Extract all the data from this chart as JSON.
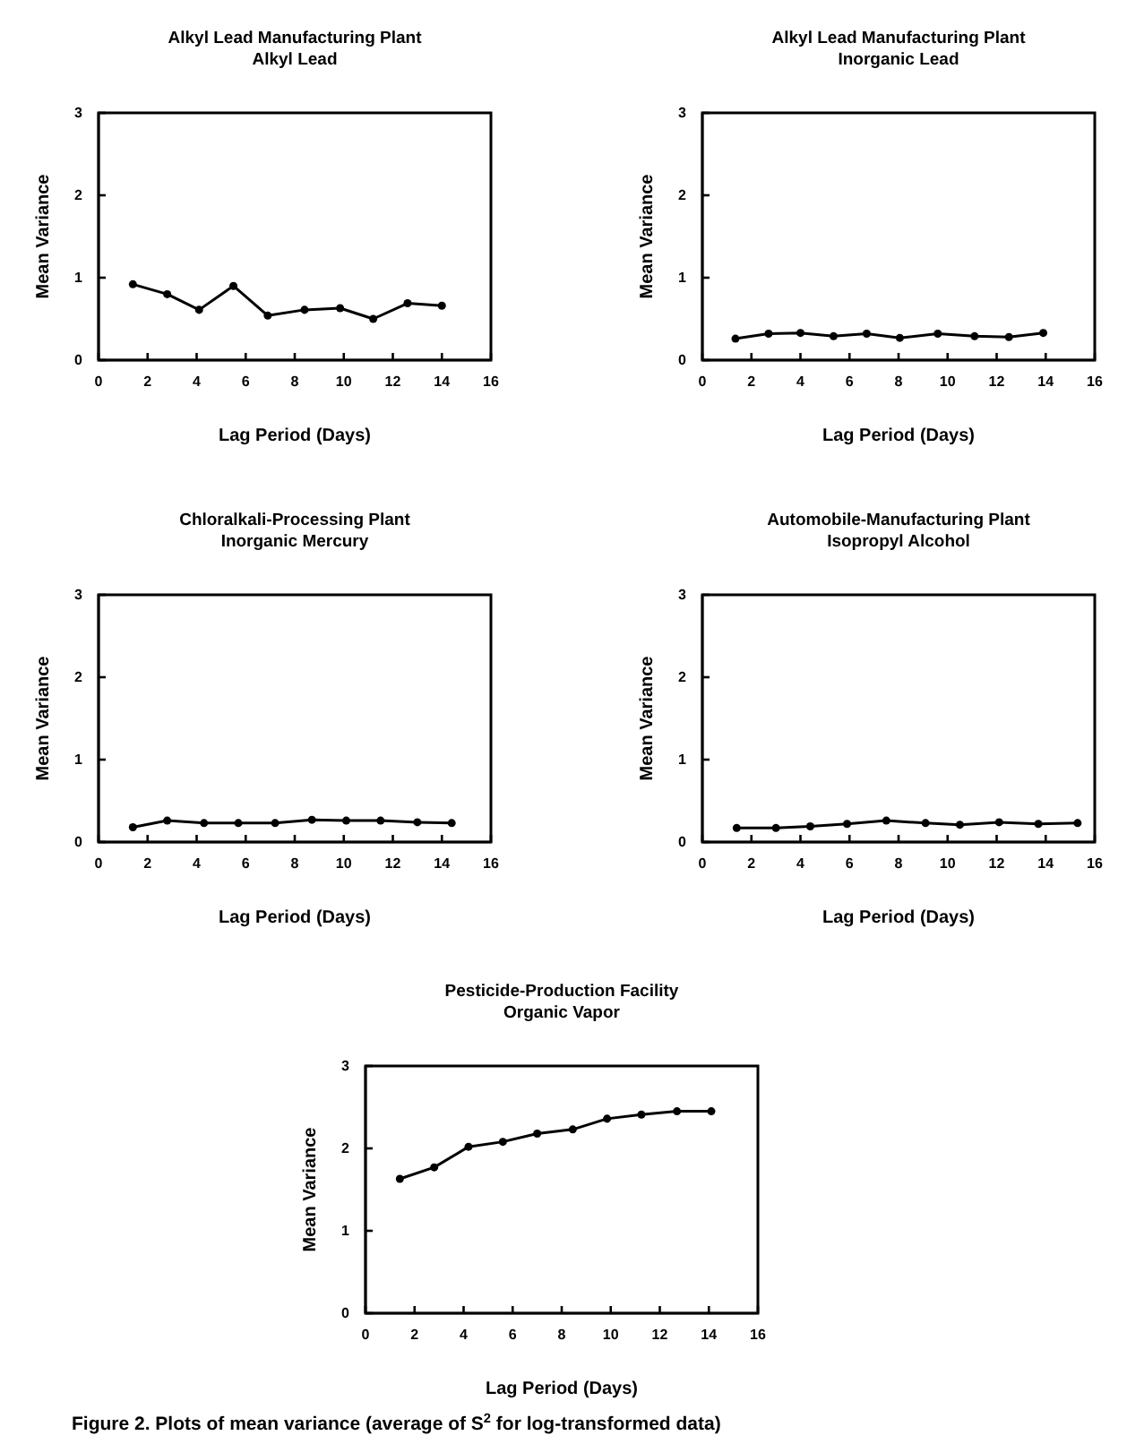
{
  "chart_data": [
    {
      "type": "line",
      "title": "Alkyl Lead Manufacturing Plant",
      "subtitle": "Alkyl Lead",
      "xlabel": "Lag Period (Days)",
      "ylabel": "Mean Variance",
      "x": [
        1.4,
        2.8,
        4.1,
        5.5,
        6.9,
        8.4,
        9.85,
        11.2,
        12.6,
        14.0
      ],
      "series": [
        {
          "color": "#000000",
          "values": [
            0.92,
            0.8,
            0.61,
            0.9,
            0.54,
            0.61,
            0.63,
            0.5,
            0.69,
            0.66
          ]
        }
      ],
      "xlim": [
        0,
        16
      ],
      "xticks": [
        0,
        2,
        4,
        6,
        8,
        10,
        12,
        14,
        16
      ],
      "ylim": [
        0,
        3
      ],
      "yticks": [
        0,
        1,
        2,
        3
      ],
      "marker": "circle",
      "line_style": "solid",
      "grid": false
    },
    {
      "type": "line",
      "title": "Alkyl Lead Manufacturing Plant",
      "subtitle": "Inorganic Lead",
      "xlabel": "Lag Period (Days)",
      "ylabel": "Mean Variance",
      "x": [
        1.35,
        2.7,
        4.0,
        5.35,
        6.7,
        8.05,
        9.6,
        11.1,
        12.5,
        13.9
      ],
      "series": [
        {
          "color": "#000000",
          "values": [
            0.26,
            0.32,
            0.33,
            0.29,
            0.32,
            0.27,
            0.32,
            0.29,
            0.28,
            0.33
          ]
        }
      ],
      "xlim": [
        0,
        16
      ],
      "xticks": [
        0,
        2,
        4,
        6,
        8,
        10,
        12,
        14,
        16
      ],
      "ylim": [
        0,
        3
      ],
      "yticks": [
        0,
        1,
        2,
        3
      ],
      "marker": "circle",
      "line_style": "solid",
      "grid": false
    },
    {
      "type": "line",
      "title": "Chloralkali-Processing Plant",
      "subtitle": "Inorganic Mercury",
      "xlabel": "Lag Period (Days)",
      "ylabel": "Mean Variance",
      "x": [
        1.4,
        2.8,
        4.3,
        5.7,
        7.2,
        8.7,
        10.1,
        11.5,
        13.0,
        14.4
      ],
      "series": [
        {
          "color": "#000000",
          "values": [
            0.18,
            0.26,
            0.23,
            0.23,
            0.23,
            0.27,
            0.26,
            0.26,
            0.24,
            0.23
          ]
        }
      ],
      "xlim": [
        0,
        16
      ],
      "xticks": [
        0,
        2,
        4,
        6,
        8,
        10,
        12,
        14,
        16
      ],
      "ylim": [
        0,
        3
      ],
      "yticks": [
        0,
        1,
        2,
        3
      ],
      "marker": "circle",
      "line_style": "solid",
      "grid": false
    },
    {
      "type": "line",
      "title": "Automobile-Manufacturing Plant",
      "subtitle": "Isopropyl Alcohol",
      "xlabel": "Lag Period (Days)",
      "ylabel": "Mean Variance",
      "x": [
        1.4,
        3.0,
        4.4,
        5.9,
        7.5,
        9.1,
        10.5,
        12.1,
        13.7,
        15.3
      ],
      "series": [
        {
          "color": "#000000",
          "values": [
            0.17,
            0.17,
            0.19,
            0.22,
            0.26,
            0.23,
            0.21,
            0.24,
            0.22,
            0.23
          ]
        }
      ],
      "xlim": [
        0,
        16
      ],
      "xticks": [
        0,
        2,
        4,
        6,
        8,
        10,
        12,
        14,
        16
      ],
      "ylim": [
        0,
        3
      ],
      "yticks": [
        0,
        1,
        2,
        3
      ],
      "marker": "circle",
      "line_style": "solid",
      "grid": false
    },
    {
      "type": "line",
      "title": "Pesticide-Production Facility",
      "subtitle": "Organic Vapor",
      "xlabel": "Lag Period (Days)",
      "ylabel": "Mean Variance",
      "x": [
        1.4,
        2.8,
        4.2,
        5.6,
        7.0,
        8.45,
        9.85,
        11.25,
        12.7,
        14.1
      ],
      "series": [
        {
          "color": "#000000",
          "values": [
            1.63,
            1.77,
            2.02,
            2.08,
            2.18,
            2.23,
            2.36,
            2.41,
            2.45,
            2.45
          ]
        }
      ],
      "xlim": [
        0,
        16
      ],
      "xticks": [
        0,
        2,
        4,
        6,
        8,
        10,
        12,
        14,
        16
      ],
      "ylim": [
        0,
        3
      ],
      "yticks": [
        0,
        1,
        2,
        3
      ],
      "marker": "circle",
      "line_style": "solid",
      "grid": false,
      "annotations": [
        "Figure 2.  Plots of mean variance (average of S$^{2}$ for log-transformed data)"
      ]
    }
  ]
}
